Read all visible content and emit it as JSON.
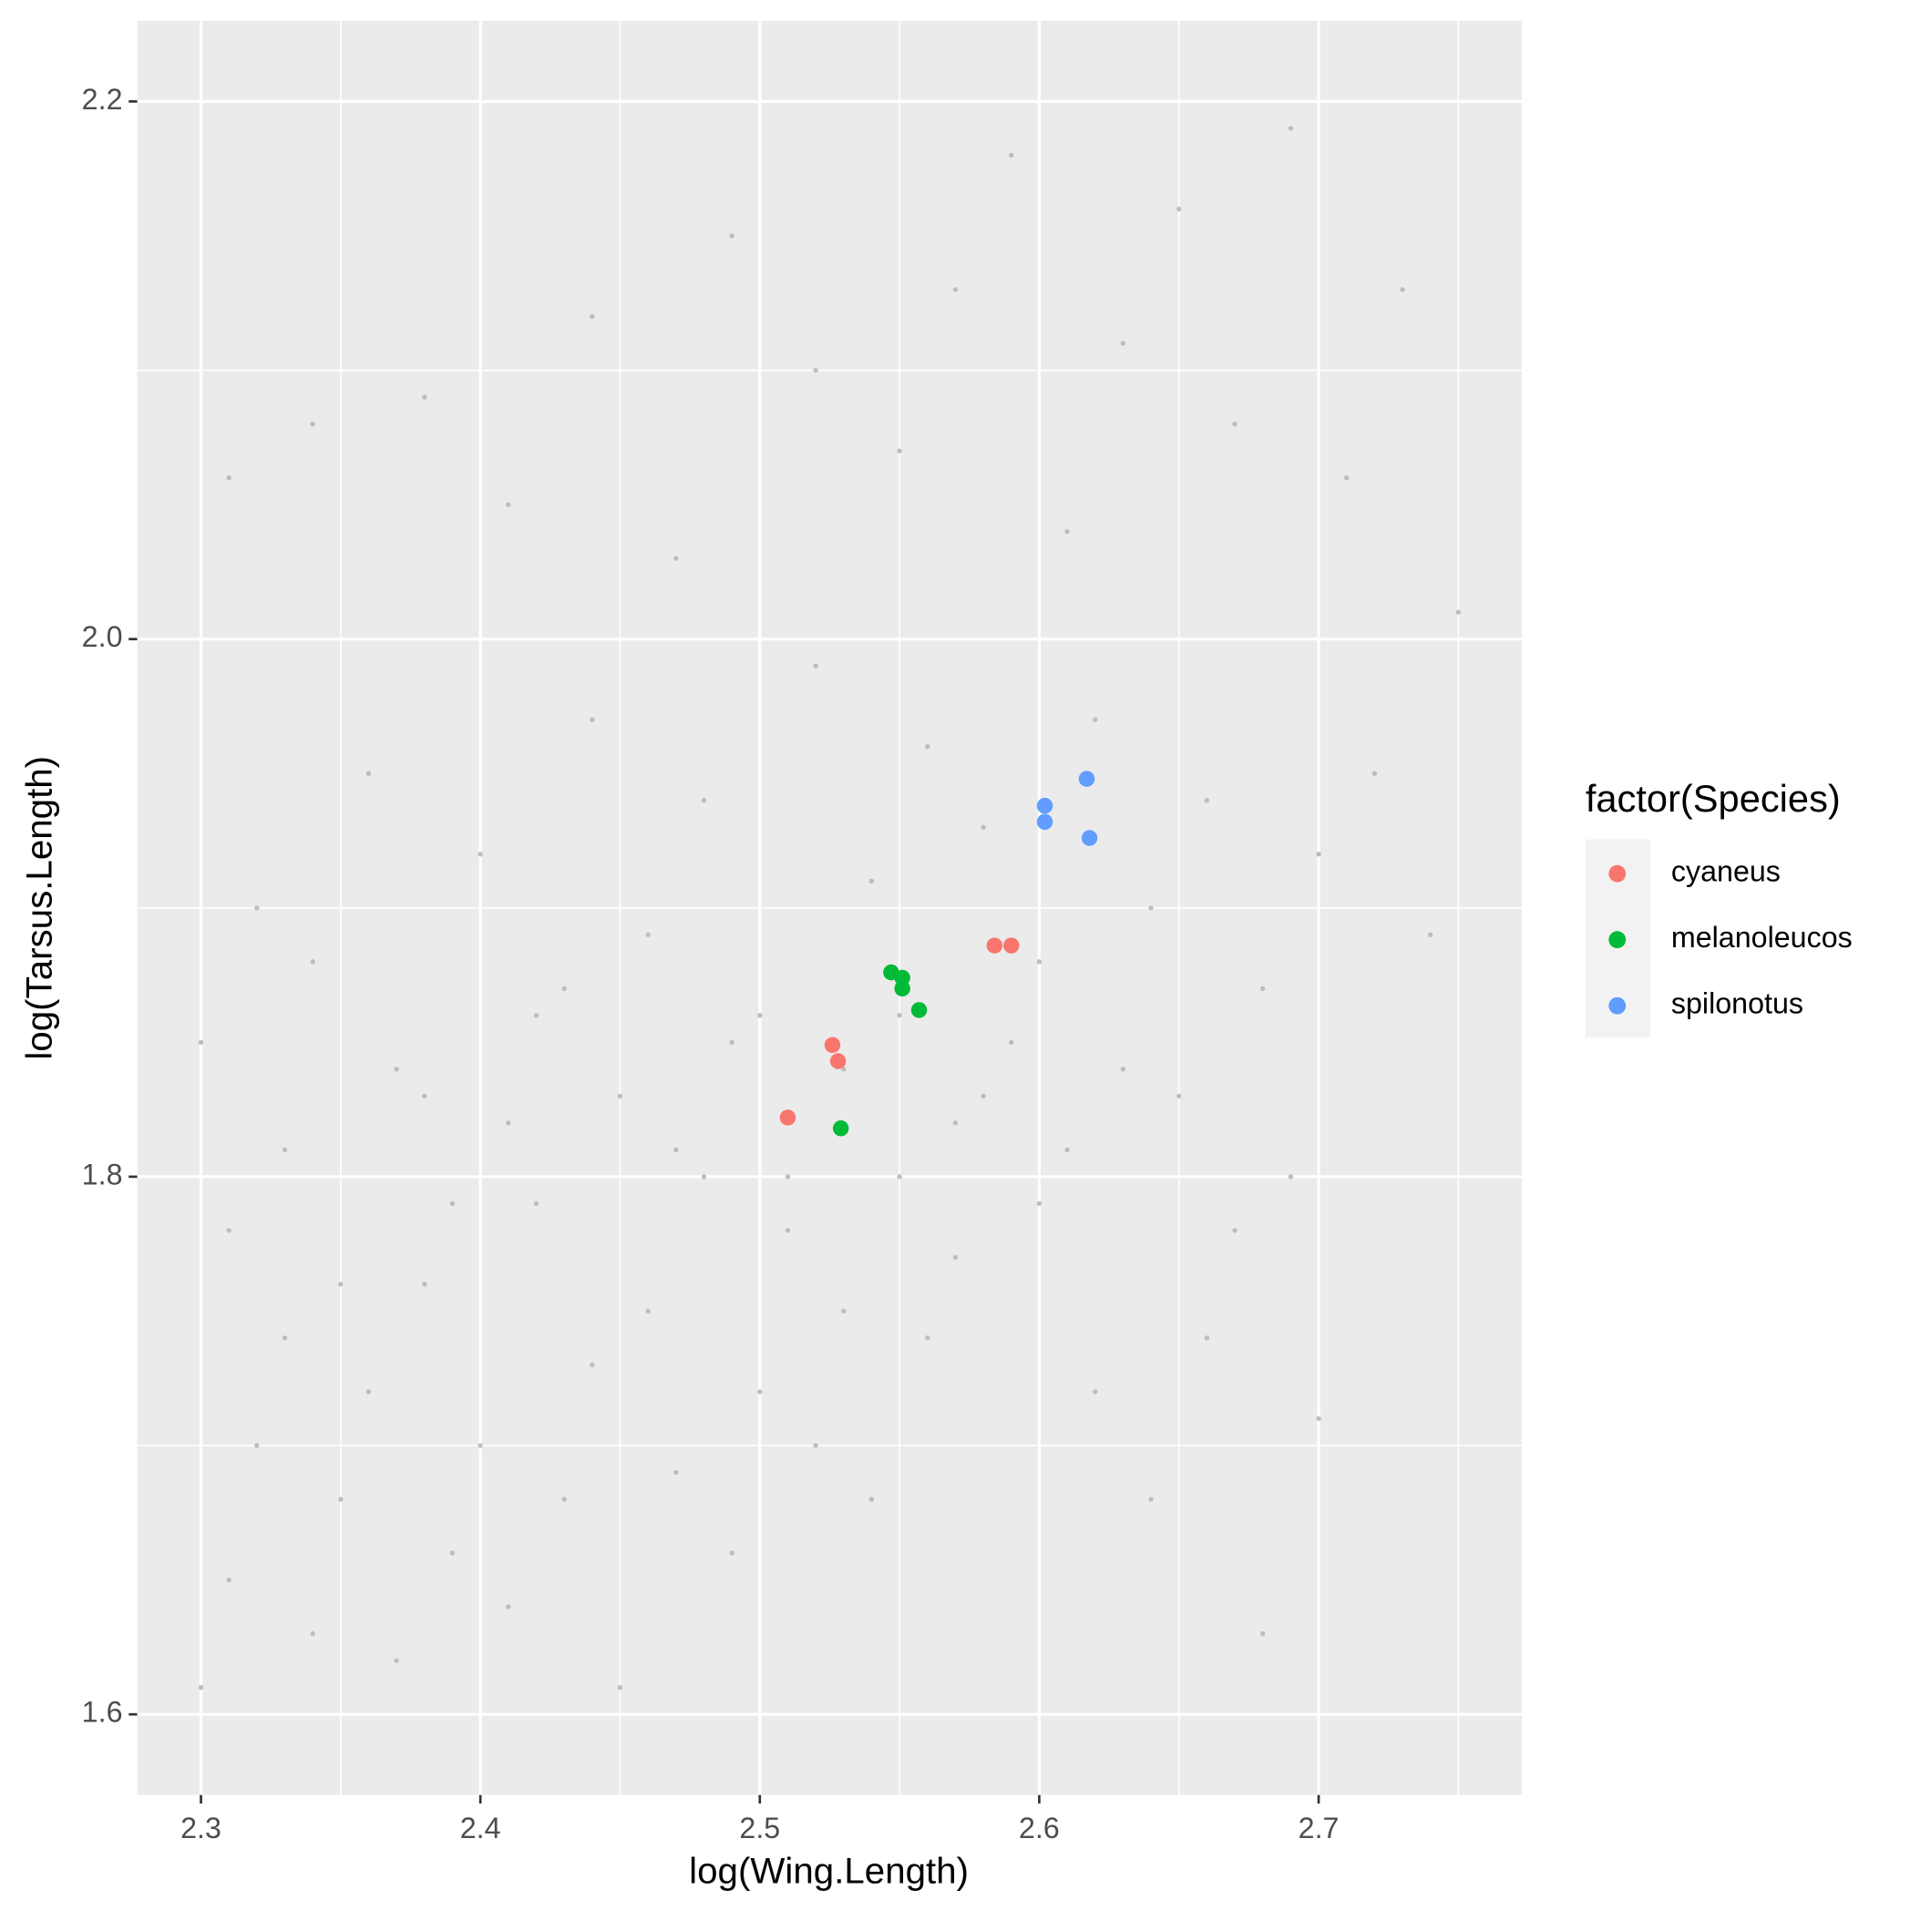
{
  "chart_data": {
    "type": "scatter",
    "x_label": "log(Wing.Length)",
    "y_label": "log(Tarsus.Length)",
    "legend_title": "factor(Species)",
    "legend_position": "right",
    "grid": true,
    "xlim": [
      2.2772,
      2.7727
    ],
    "ylim": [
      1.57,
      2.23
    ],
    "xticks": [
      2.3,
      2.4,
      2.5,
      2.6,
      2.7
    ],
    "yticks": [
      1.6,
      1.8,
      {
        "value": 2,
        "label": "2.0"
      },
      2.2
    ],
    "x_minor_grid": [
      2.35,
      2.45,
      2.55,
      2.65,
      2.75
    ],
    "y_minor_grid": [
      1.7,
      1.9,
      2.1
    ],
    "series": [
      {
        "color": "#bdbdbd",
        "x": [
          2.3,
          2.31,
          2.32,
          2.31,
          2.33,
          2.34,
          2.35,
          2.36,
          2.37,
          2.38,
          2.39,
          2.4,
          2.41,
          2.42,
          2.43,
          2.44,
          2.45,
          2.46,
          2.47,
          2.48,
          2.49,
          2.5,
          2.51,
          2.52,
          2.53,
          2.54,
          2.55,
          2.56,
          2.57,
          2.58,
          2.6,
          2.62,
          2.64,
          2.66,
          2.68,
          2.7,
          2.3,
          2.32,
          2.34,
          2.36,
          2.38,
          2.4,
          2.42,
          2.44,
          2.46,
          2.48,
          2.5,
          2.52,
          2.54,
          2.56,
          2.58,
          2.6,
          2.62,
          2.64,
          2.66,
          2.68,
          2.7,
          2.72,
          2.74,
          2.31,
          2.34,
          2.38,
          2.41,
          2.44,
          2.47,
          2.49,
          2.52,
          2.55,
          2.57,
          2.59,
          2.61,
          2.63,
          2.65,
          2.67,
          2.69,
          2.71,
          2.73,
          2.75,
          2.33,
          2.35,
          2.37,
          2.39,
          2.41,
          2.43,
          2.45,
          2.47,
          2.49,
          2.51,
          2.53,
          2.55,
          2.57,
          2.59,
          2.61,
          2.63,
          2.65,
          2.67,
          2.69
        ],
        "values": [
          1.61,
          1.65,
          1.7,
          1.78,
          1.74,
          1.63,
          1.68,
          1.72,
          1.62,
          1.76,
          1.66,
          1.7,
          1.64,
          1.79,
          1.68,
          1.73,
          1.61,
          1.75,
          1.69,
          1.8,
          1.66,
          1.72,
          1.78,
          1.7,
          1.75,
          1.68,
          1.8,
          1.74,
          1.77,
          1.83,
          1.79,
          1.72,
          1.68,
          1.74,
          1.63,
          1.71,
          1.85,
          1.9,
          1.88,
          1.95,
          1.83,
          1.92,
          1.86,
          1.97,
          1.89,
          1.94,
          1.86,
          1.99,
          1.91,
          1.96,
          1.93,
          1.88,
          1.97,
          1.9,
          1.94,
          1.87,
          1.92,
          1.95,
          1.89,
          2.06,
          2.08,
          2.09,
          2.05,
          2.12,
          2.03,
          2.15,
          2.1,
          2.07,
          2.13,
          2.18,
          2.04,
          2.11,
          2.16,
          2.08,
          2.19,
          2.06,
          2.13,
          2.01,
          1.81,
          1.76,
          1.84,
          1.79,
          1.82,
          1.87,
          1.83,
          1.81,
          1.85,
          1.8,
          1.84,
          1.86,
          1.82,
          1.85,
          1.81,
          1.84,
          1.83,
          1.78,
          1.8
        ]
      },
      {
        "name": "cyaneus",
        "color": "#f8766d",
        "x": [
          2.51,
          2.526,
          2.528,
          2.584,
          2.59
        ],
        "values": [
          1.822,
          1.849,
          1.843,
          1.886,
          1.886
        ]
      },
      {
        "name": "melanoleucos",
        "color": "#00ba38",
        "x": [
          2.547,
          2.551,
          2.551,
          2.557,
          2.529
        ],
        "values": [
          1.876,
          1.874,
          1.87,
          1.862,
          1.818
        ]
      },
      {
        "name": "spilonotus",
        "color": "#619cff",
        "x": [
          2.602,
          2.602,
          2.617,
          2.618
        ],
        "values": [
          1.938,
          1.932,
          1.948,
          1.926
        ]
      }
    ]
  }
}
